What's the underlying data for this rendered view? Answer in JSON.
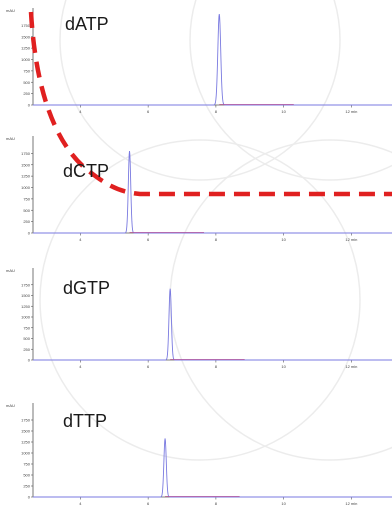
{
  "chart_data": [
    {
      "type": "line",
      "title": "dATP",
      "ylabel": "mAU",
      "yticks": [
        "1750",
        "1500",
        "1250",
        "1000",
        "750",
        "500",
        "250",
        "0"
      ],
      "xticks": [
        "4",
        "6",
        "8",
        "10",
        "12 min"
      ],
      "xlim": [
        2.6,
        13.2
      ],
      "ylim": [
        0,
        2000
      ],
      "series": [
        {
          "peak_time": 8.1,
          "peak_height": 2000,
          "width": 0.06
        }
      ]
    },
    {
      "type": "line",
      "title": "dCTP",
      "ylabel": "mAU",
      "yticks": [
        "1750",
        "1500",
        "1250",
        "1000",
        "750",
        "500",
        "250",
        "0"
      ],
      "xticks": [
        "4",
        "6",
        "8",
        "10",
        "12 min"
      ],
      "xlim": [
        2.6,
        13.2
      ],
      "ylim": [
        0,
        2000
      ],
      "series": [
        {
          "peak_time": 5.45,
          "peak_height": 1800,
          "width": 0.05
        }
      ]
    },
    {
      "type": "line",
      "title": "dGTP",
      "ylabel": "mAU",
      "yticks": [
        "1750",
        "1500",
        "1250",
        "1000",
        "750",
        "500",
        "250",
        "0"
      ],
      "xticks": [
        "4",
        "6",
        "8",
        "10",
        "12 min"
      ],
      "xlim": [
        2.6,
        13.2
      ],
      "ylim": [
        0,
        2000
      ],
      "series": [
        {
          "peak_time": 6.65,
          "peak_height": 1660,
          "width": 0.05
        }
      ]
    },
    {
      "type": "line",
      "title": "dTTP",
      "ylabel": "mAU",
      "yticks": [
        "1750",
        "1500",
        "1250",
        "1000",
        "750",
        "500",
        "250",
        "0"
      ],
      "xticks": [
        "4",
        "6",
        "8",
        "10",
        "12 min"
      ],
      "xlim": [
        2.6,
        13.2
      ],
      "ylim": [
        0,
        2000
      ],
      "series": [
        {
          "peak_time": 6.5,
          "peak_height": 1330,
          "width": 0.05
        }
      ]
    }
  ],
  "colors": {
    "trace": "#7a7ae0",
    "baseline": "#c24a8c",
    "axis": "#555555",
    "annotation": "#e02020",
    "watermark": "#ececec"
  }
}
